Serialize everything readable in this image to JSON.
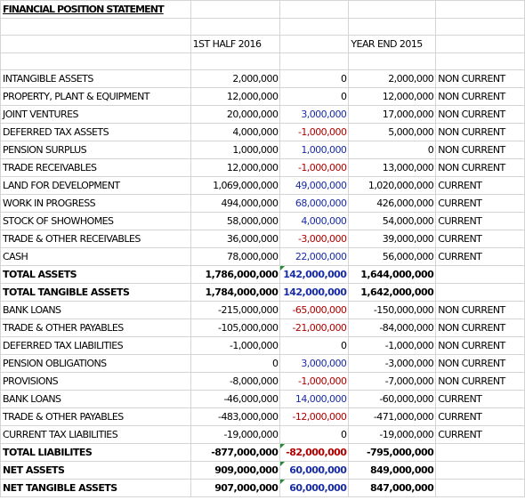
{
  "title": "FINANCIAL POSITION STATEMENT",
  "headers": {
    "h1": "1ST HALF 2016",
    "h2": "YEAR END 2015"
  },
  "rows": [
    {
      "label": "INTANGIBLE ASSETS",
      "h1": "2,000,000",
      "diff": "0",
      "diff_sign": "zero",
      "ye": "2,000,000",
      "cls": "NON CURRENT",
      "bold": false,
      "mark": false
    },
    {
      "label": "PROPERTY, PLANT & EQUIPMENT",
      "h1": "12,000,000",
      "diff": "0",
      "diff_sign": "zero",
      "ye": "12,000,000",
      "cls": "NON CURRENT",
      "bold": false,
      "mark": false
    },
    {
      "label": "JOINT VENTURES",
      "h1": "20,000,000",
      "diff": "3,000,000",
      "diff_sign": "pos",
      "ye": "17,000,000",
      "cls": "NON CURRENT",
      "bold": false,
      "mark": false
    },
    {
      "label": "DEFERRED TAX ASSETS",
      "h1": "4,000,000",
      "diff": "-1,000,000",
      "diff_sign": "neg",
      "ye": "5,000,000",
      "cls": "NON CURRENT",
      "bold": false,
      "mark": false
    },
    {
      "label": "PENSION SURPLUS",
      "h1": "1,000,000",
      "diff": "1,000,000",
      "diff_sign": "pos",
      "ye": "0",
      "cls": "NON CURRENT",
      "bold": false,
      "mark": false
    },
    {
      "label": "TRADE RECEIVABLES",
      "h1": "12,000,000",
      "diff": "-1,000,000",
      "diff_sign": "neg",
      "ye": "13,000,000",
      "cls": "NON CURRENT",
      "bold": false,
      "mark": false
    },
    {
      "label": "LAND FOR DEVELOPMENT",
      "h1": "1,069,000,000",
      "diff": "49,000,000",
      "diff_sign": "pos",
      "ye": "1,020,000,000",
      "cls": "CURRENT",
      "bold": false,
      "mark": false
    },
    {
      "label": "WORK IN PROGRESS",
      "h1": "494,000,000",
      "diff": "68,000,000",
      "diff_sign": "pos",
      "ye": "426,000,000",
      "cls": "CURRENT",
      "bold": false,
      "mark": false
    },
    {
      "label": "STOCK OF SHOWHOMES",
      "h1": "58,000,000",
      "diff": "4,000,000",
      "diff_sign": "pos",
      "ye": "54,000,000",
      "cls": "CURRENT",
      "bold": false,
      "mark": false
    },
    {
      "label": "TRADE & OTHER RECEIVABLES",
      "h1": "36,000,000",
      "diff": "-3,000,000",
      "diff_sign": "neg",
      "ye": "39,000,000",
      "cls": "CURRENT",
      "bold": false,
      "mark": false
    },
    {
      "label": "CASH",
      "h1": "78,000,000",
      "diff": "22,000,000",
      "diff_sign": "pos",
      "ye": "56,000,000",
      "cls": "CURRENT",
      "bold": false,
      "mark": false
    },
    {
      "label": "TOTAL ASSETS",
      "h1": "1,786,000,000",
      "diff": "142,000,000",
      "diff_sign": "pos",
      "ye": "1,644,000,000",
      "cls": "",
      "bold": true,
      "mark": true
    },
    {
      "label": "TOTAL TANGIBLE ASSETS",
      "h1": "1,784,000,000",
      "diff": "142,000,000",
      "diff_sign": "pos",
      "ye": "1,642,000,000",
      "cls": "",
      "bold": true,
      "mark": false
    },
    {
      "label": "BANK LOANS",
      "h1": "-215,000,000",
      "diff": "-65,000,000",
      "diff_sign": "neg",
      "ye": "-150,000,000",
      "cls": "NON CURRENT",
      "bold": false,
      "mark": false
    },
    {
      "label": "TRADE & OTHER PAYABLES",
      "h1": "-105,000,000",
      "diff": "-21,000,000",
      "diff_sign": "neg",
      "ye": "-84,000,000",
      "cls": "NON CURRENT",
      "bold": false,
      "mark": false
    },
    {
      "label": "DEFERRED TAX LIABILITIES",
      "h1": "-1,000,000",
      "diff": "0",
      "diff_sign": "zero",
      "ye": "-1,000,000",
      "cls": "NON CURRENT",
      "bold": false,
      "mark": false
    },
    {
      "label": "PENSION OBLIGATIONS",
      "h1": "0",
      "diff": "3,000,000",
      "diff_sign": "pos",
      "ye": "-3,000,000",
      "cls": "NON CURRENT",
      "bold": false,
      "mark": false
    },
    {
      "label": "PROVISIONS",
      "h1": "-8,000,000",
      "diff": "-1,000,000",
      "diff_sign": "neg",
      "ye": "-7,000,000",
      "cls": "NON CURRENT",
      "bold": false,
      "mark": false
    },
    {
      "label": "BANK LOANS",
      "h1": "-46,000,000",
      "diff": "14,000,000",
      "diff_sign": "pos",
      "ye": "-60,000,000",
      "cls": "CURRENT",
      "bold": false,
      "mark": false
    },
    {
      "label": "TRADE & OTHER PAYABLES",
      "h1": "-483,000,000",
      "diff": "-12,000,000",
      "diff_sign": "neg",
      "ye": "-471,000,000",
      "cls": "CURRENT",
      "bold": false,
      "mark": false
    },
    {
      "label": "CURRENT TAX LIABILITIES",
      "h1": "-19,000,000",
      "diff": "0",
      "diff_sign": "zero",
      "ye": "-19,000,000",
      "cls": "CURRENT",
      "bold": false,
      "mark": false
    },
    {
      "label": "TOTAL LIABILITES",
      "h1": "-877,000,000",
      "diff": "-82,000,000",
      "diff_sign": "neg",
      "ye": "-795,000,000",
      "cls": "",
      "bold": true,
      "mark": true
    },
    {
      "label": "NET ASSETS",
      "h1": "909,000,000",
      "diff": "60,000,000",
      "diff_sign": "pos",
      "ye": "849,000,000",
      "cls": "",
      "bold": true,
      "mark": true
    },
    {
      "label": "NET TANGIBLE ASSETS",
      "h1": "907,000,000",
      "diff": "60,000,000",
      "diff_sign": "pos",
      "ye": "847,000,000",
      "cls": "",
      "bold": true,
      "mark": true
    }
  ],
  "colors": {
    "positive_diff": "#1a2ca6",
    "negative_diff": "#b00000",
    "gridline": "#d4d4d4",
    "note_marker": "#1f8c2f"
  }
}
